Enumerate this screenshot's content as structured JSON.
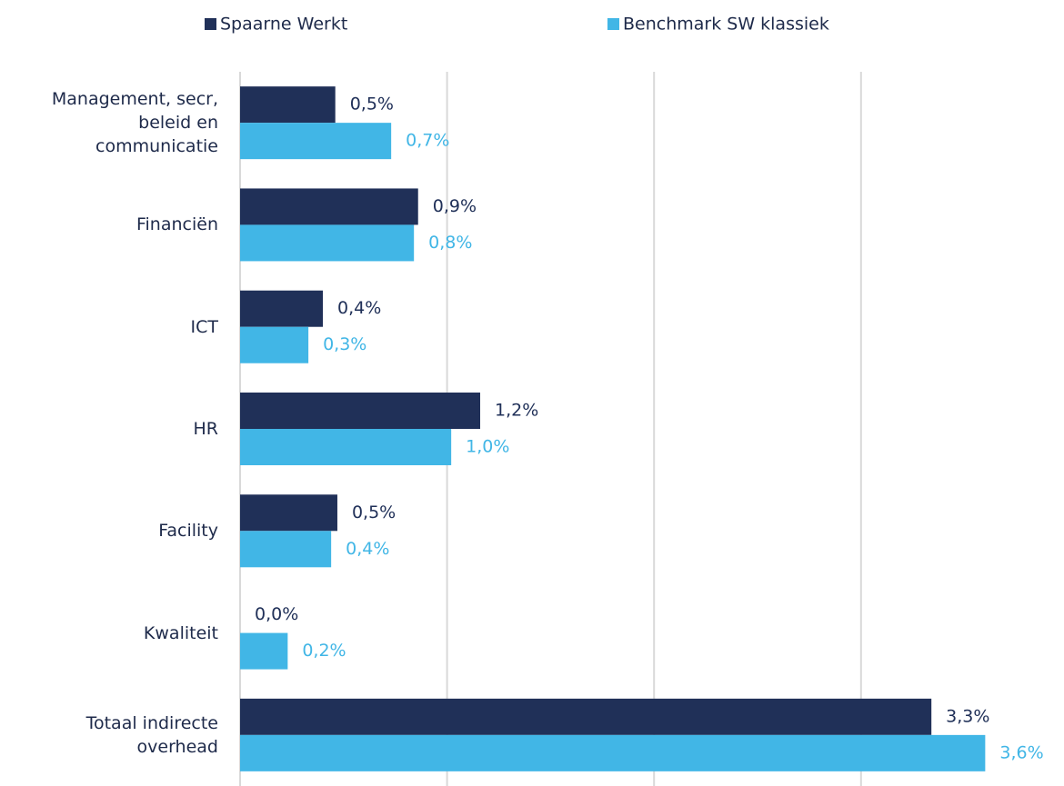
{
  "chart_data": {
    "type": "bar",
    "orientation": "horizontal",
    "categories": [
      "Management, secr,\nbeleid en\ncommunicatie",
      "Financiën",
      "ICT",
      "HR",
      "Facility",
      "Kwaliteit",
      "Totaal indirecte\noverhead"
    ],
    "series": [
      {
        "name": "Spaarne Werkt",
        "color": "#203058",
        "values": [
          0.46,
          0.86,
          0.4,
          1.16,
          0.47,
          0.0,
          3.34
        ],
        "value_labels": [
          "0,5%",
          "0,9%",
          "0,4%",
          "1,2%",
          "0,5%",
          "0,0%",
          "3,3%"
        ]
      },
      {
        "name": "Benchmark SW klassiek",
        "color": "#41b6e6",
        "values": [
          0.73,
          0.84,
          0.33,
          1.02,
          0.44,
          0.23,
          3.6
        ],
        "value_labels": [
          "0,7%",
          "0,8%",
          "0,3%",
          "1,0%",
          "0,4%",
          "0,2%",
          "3,6%"
        ]
      }
    ],
    "xlim": [
      0,
      3.9
    ],
    "xticks": [
      0,
      1,
      2,
      3
    ],
    "grid": true,
    "legend": "top"
  }
}
